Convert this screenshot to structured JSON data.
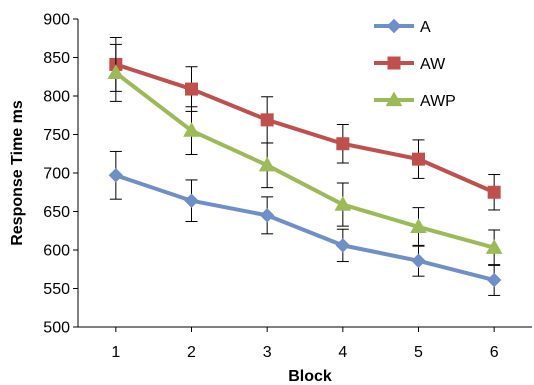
{
  "chart_data": {
    "type": "line",
    "title": "",
    "xlabel": "Block",
    "ylabel": "Response Time ms",
    "x": [
      1,
      2,
      3,
      4,
      5,
      6
    ],
    "ylim": [
      500,
      900
    ],
    "yticks": [
      500,
      550,
      600,
      650,
      700,
      750,
      800,
      850,
      900
    ],
    "grid": false,
    "legend_position": "top-right",
    "series": [
      {
        "name": "A",
        "color": "#6F8FC8",
        "marker": "diamond",
        "values": [
          697,
          664,
          645,
          606,
          586,
          561
        ],
        "errors": [
          31,
          27,
          24,
          21,
          20,
          20
        ]
      },
      {
        "name": "AW",
        "color": "#C0504D",
        "marker": "square",
        "values": [
          841,
          809,
          769,
          738,
          718,
          675
        ],
        "errors": [
          35,
          29,
          30,
          25,
          25,
          23
        ]
      },
      {
        "name": "AWP",
        "color": "#9BBB59",
        "marker": "triangle",
        "values": [
          830,
          755,
          710,
          659,
          630,
          603
        ],
        "errors": [
          37,
          31,
          29,
          28,
          25,
          23
        ]
      }
    ]
  }
}
